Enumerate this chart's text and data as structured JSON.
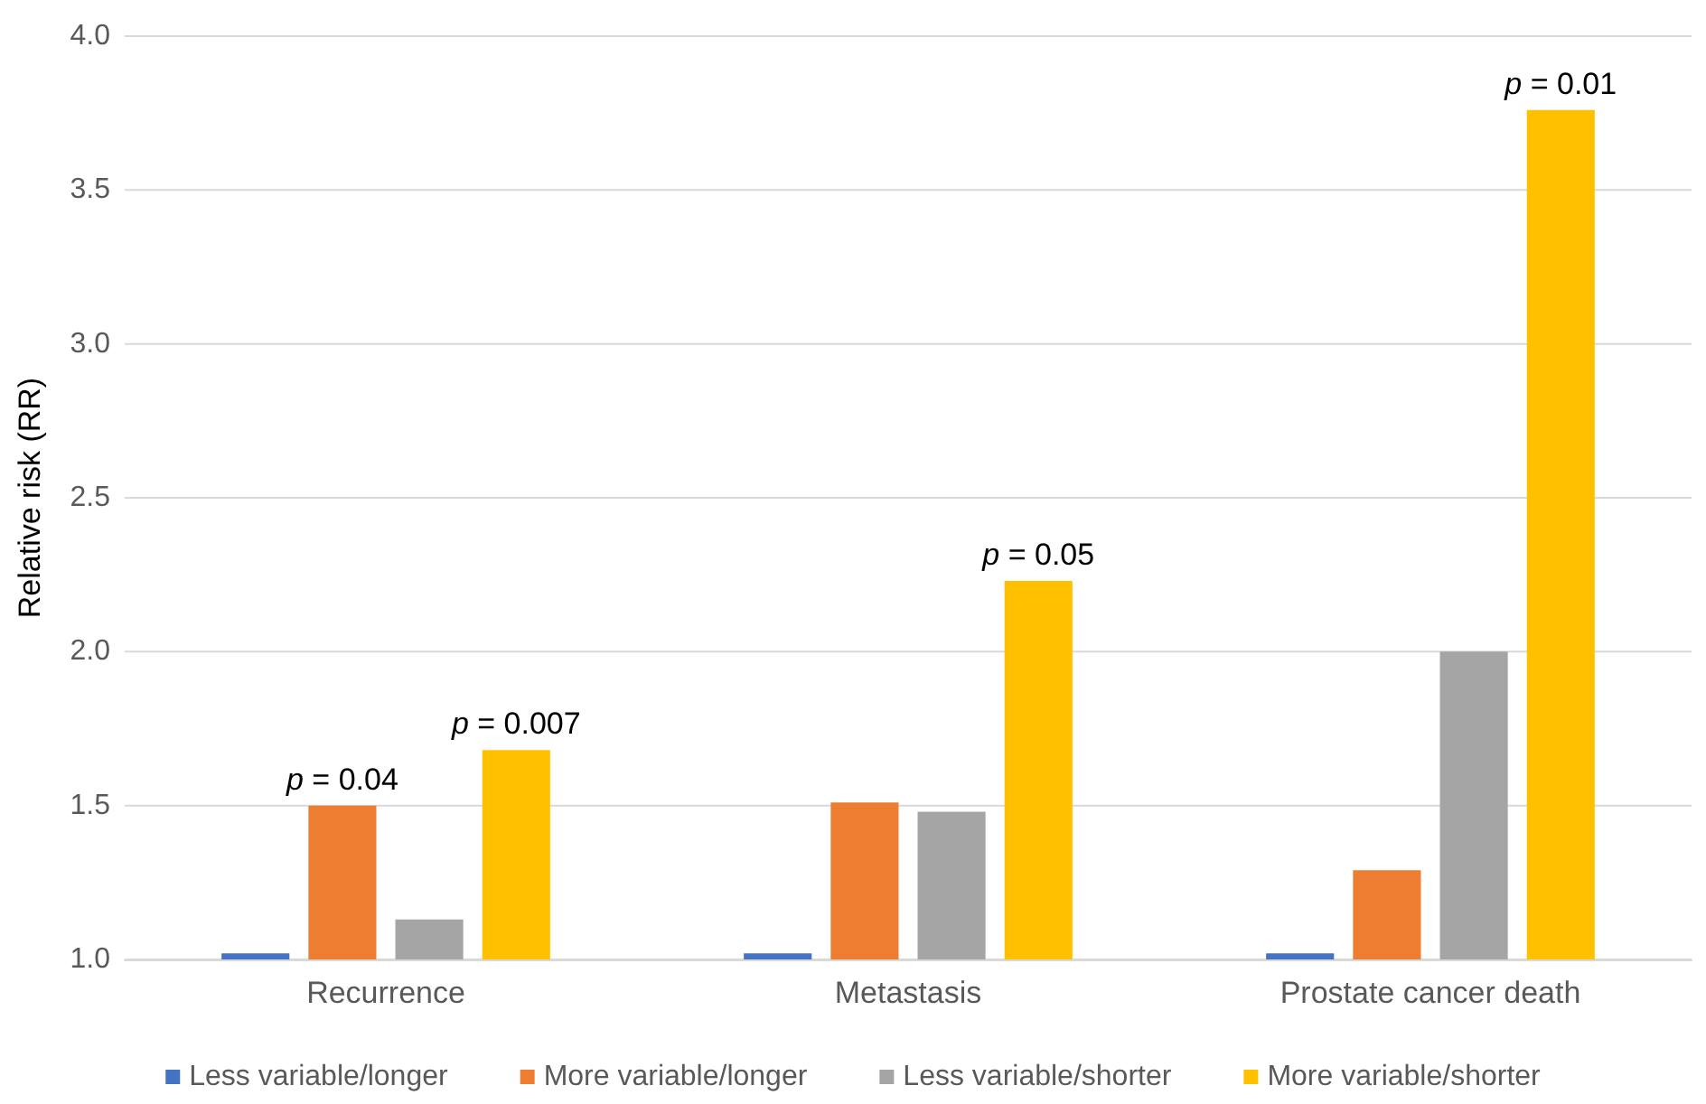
{
  "chart_data": {
    "type": "bar",
    "ylabel": "Relative risk (RR)",
    "categories": [
      "Recurrence",
      "Metastasis",
      "Prostate cancer death"
    ],
    "series": [
      {
        "name": "Less variable/longer",
        "color": "#4472c4",
        "values": [
          1.02,
          1.02,
          1.02
        ]
      },
      {
        "name": "More variable/longer",
        "color": "#ed7d31",
        "values": [
          1.5,
          1.51,
          1.29
        ]
      },
      {
        "name": "Less variable/shorter",
        "color": "#a5a5a5",
        "values": [
          1.13,
          1.48,
          2.0
        ]
      },
      {
        "name": "More variable/shorter",
        "color": "#ffc000",
        "values": [
          1.68,
          2.23,
          3.76
        ]
      }
    ],
    "annotations": [
      "p = 0.04",
      "p = 0.007",
      "p = 0.05",
      "p = 0.01"
    ],
    "ylim": [
      1.0,
      4.0
    ],
    "yticks": [
      {
        "value": 1.0,
        "label": "1.0"
      },
      {
        "value": 1.5,
        "label": "1.5"
      },
      {
        "value": 2.0,
        "label": "2.0"
      },
      {
        "value": 2.5,
        "label": "2.5"
      },
      {
        "value": 3.0,
        "label": "3.0"
      },
      {
        "value": 3.5,
        "label": "3.5"
      },
      {
        "value": 4.0,
        "label": "4.0"
      }
    ],
    "grid": "y",
    "legend": "bottom"
  }
}
